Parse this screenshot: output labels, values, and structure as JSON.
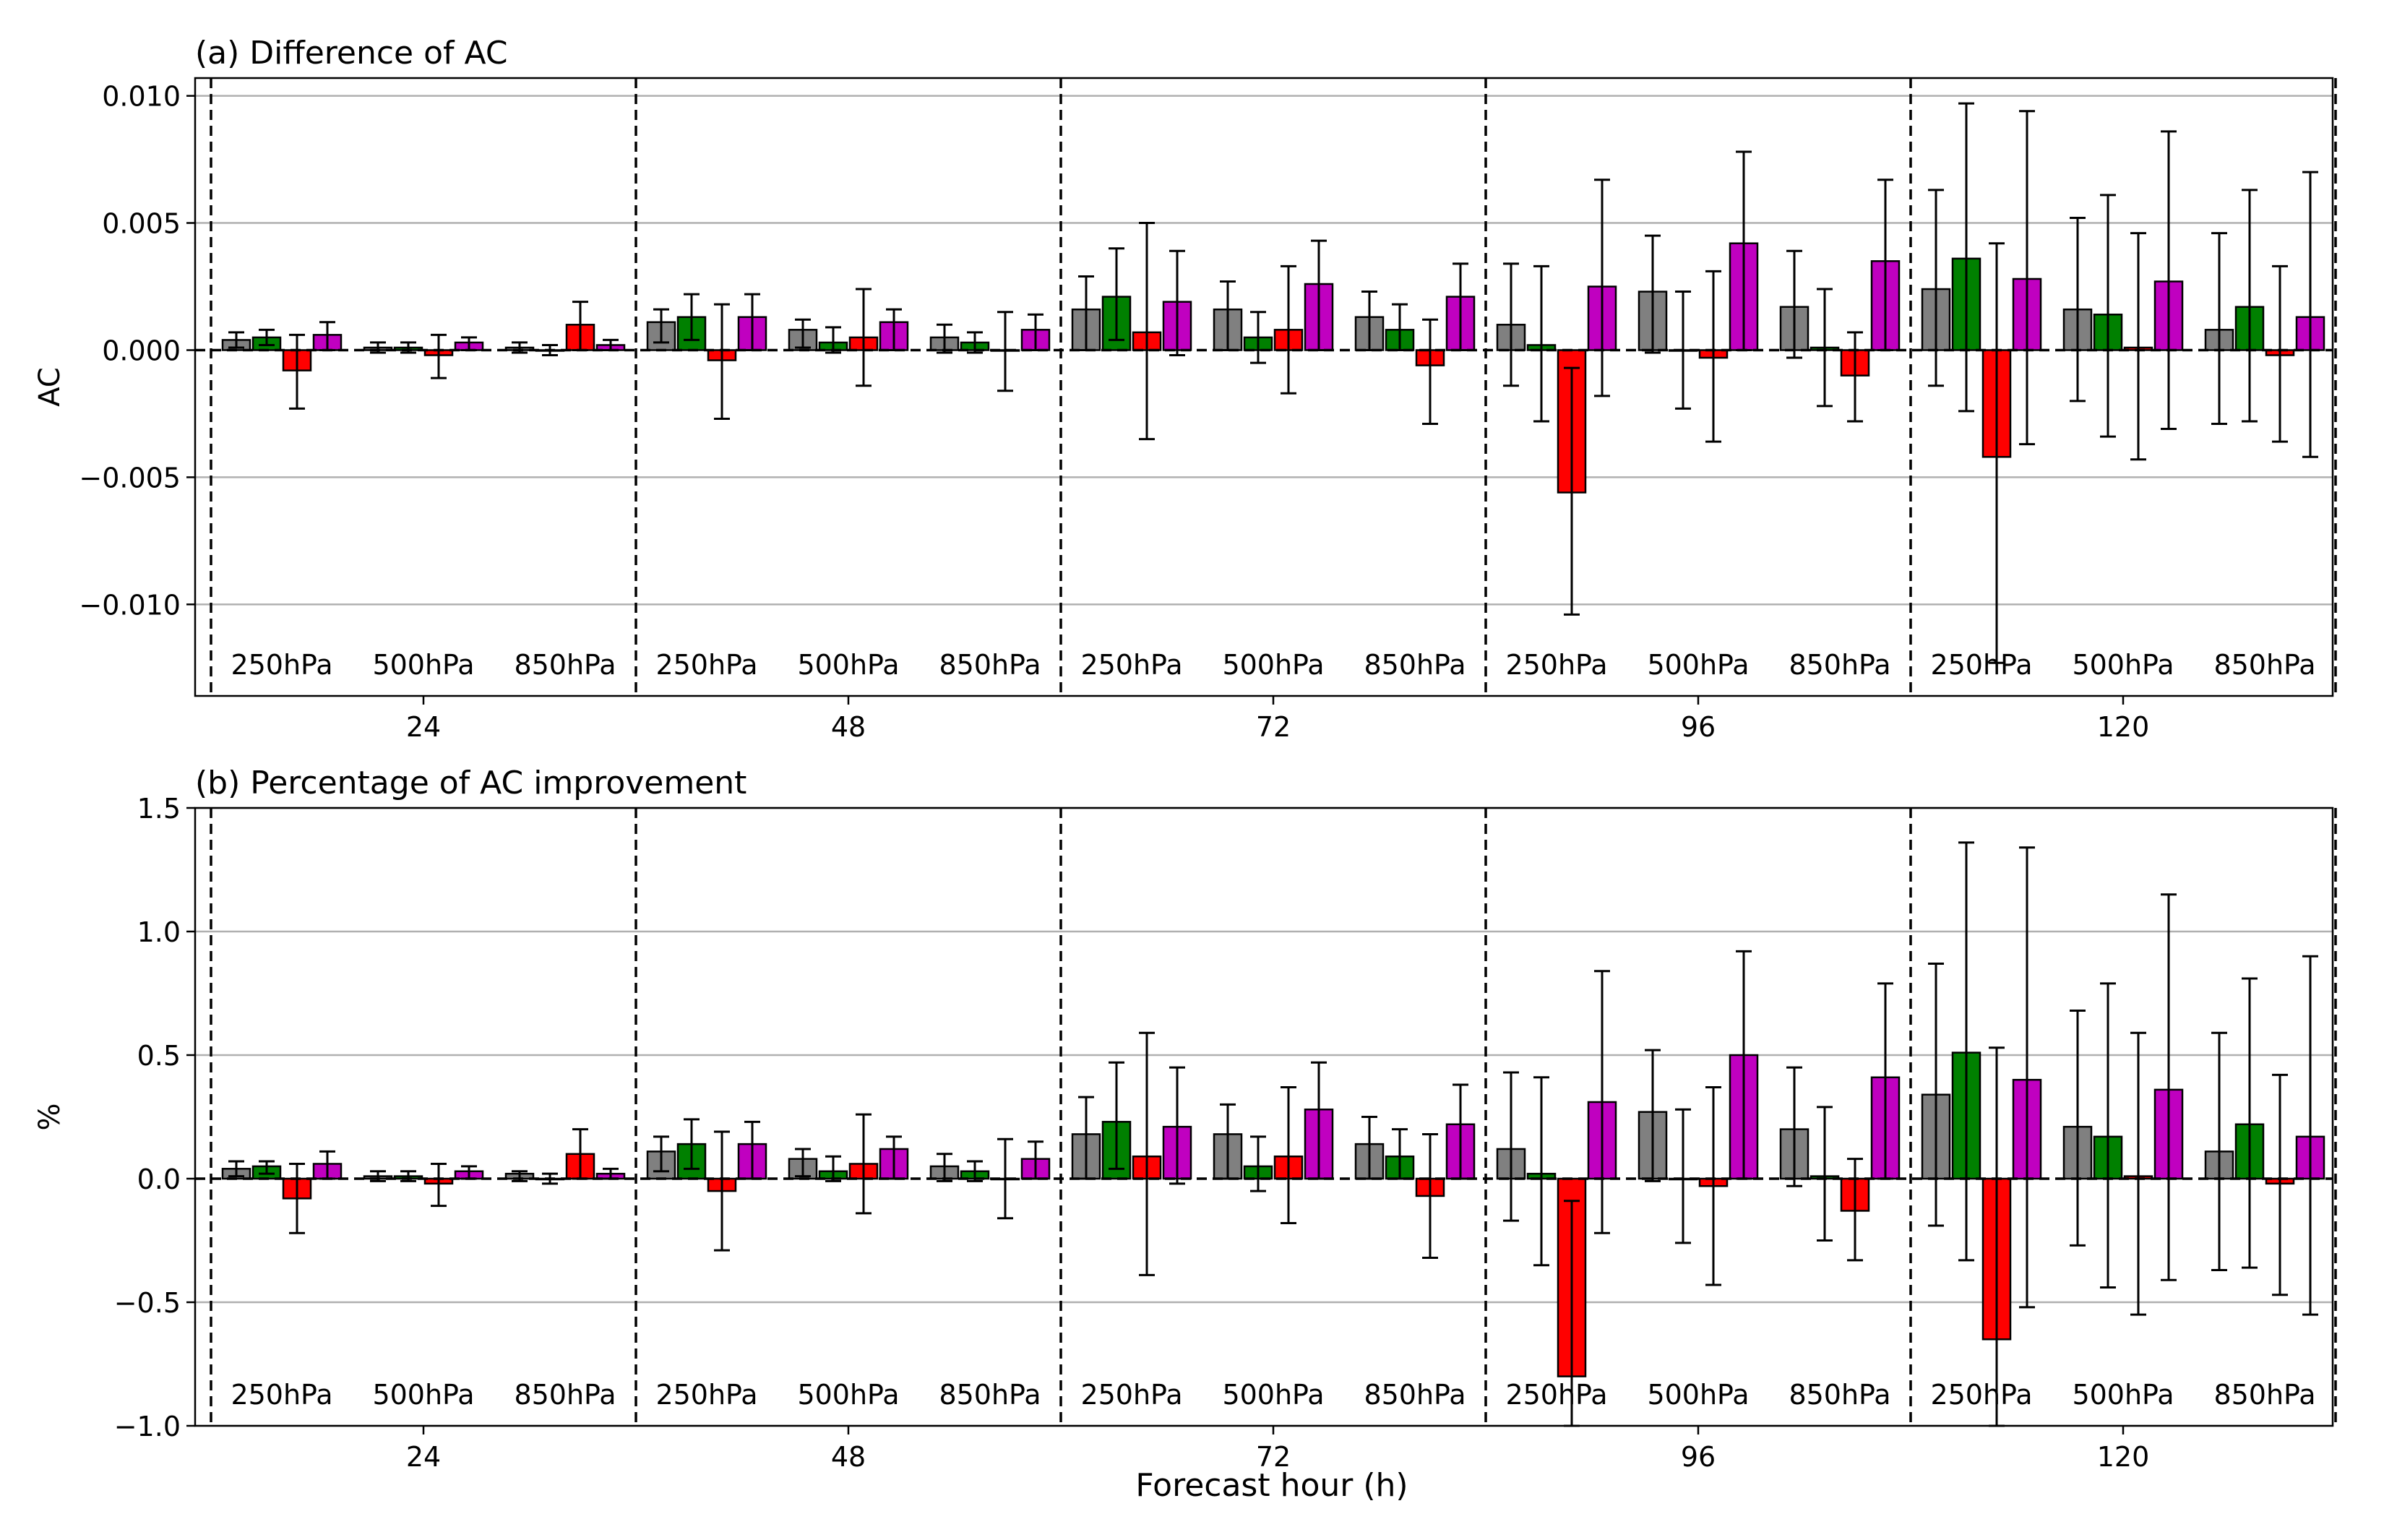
{
  "figure": {
    "xlabel": "Forecast hour (h)"
  },
  "style": {
    "series_colors": [
      "#808080",
      "#008000",
      "#ff0000",
      "#c000c0"
    ],
    "grid_color": "#b0b0b0"
  },
  "chart_data": [
    {
      "type": "bar",
      "title": "(a) Difference of AC",
      "ylabel": "AC",
      "ylim": [
        -0.0136,
        0.0107
      ],
      "yticks": [
        -0.01,
        -0.005,
        0.0,
        0.005,
        0.01
      ],
      "ytick_labels": [
        "−0.010",
        "−0.005",
        "0.000",
        "0.005",
        "0.010"
      ],
      "grid": "horizontal",
      "groups": [
        "24",
        "48",
        "72",
        "96",
        "120"
      ],
      "levels": [
        "250hPa",
        "500hPa",
        "850hPa"
      ],
      "series_count": 4,
      "values": [
        [
          [
            0.0004,
            0.0005,
            -0.0008,
            0.0006
          ],
          [
            0.0001,
            0.0001,
            -0.0002,
            0.0003
          ],
          [
            0.0001,
            0.0,
            0.001,
            0.0002
          ]
        ],
        [
          [
            0.0011,
            0.0013,
            -0.0004,
            0.0013
          ],
          [
            0.0008,
            0.0003,
            0.0005,
            0.0011
          ],
          [
            0.0005,
            0.0003,
            0.0,
            0.0008
          ]
        ],
        [
          [
            0.0016,
            0.0021,
            0.0007,
            0.0019
          ],
          [
            0.0016,
            0.0005,
            0.0008,
            0.0026
          ],
          [
            0.0013,
            0.0008,
            -0.0006,
            0.0021
          ]
        ],
        [
          [
            0.001,
            0.0002,
            -0.0056,
            0.0025
          ],
          [
            0.0023,
            0.0,
            -0.0003,
            0.0042
          ],
          [
            0.0017,
            0.0001,
            -0.001,
            0.0035
          ]
        ],
        [
          [
            0.0024,
            0.0036,
            -0.0042,
            0.0028
          ],
          [
            0.0016,
            0.0014,
            0.0001,
            0.0027
          ],
          [
            0.0008,
            0.0017,
            -0.0002,
            0.0013
          ]
        ]
      ],
      "error_low": [
        [
          [
            0.0001,
            0.0002,
            -0.0023,
            0.0
          ],
          [
            -0.0001,
            -0.0001,
            -0.0011,
            0.0
          ],
          [
            -0.0001,
            -0.0002,
            0.0,
            0.0
          ]
        ],
        [
          [
            0.0003,
            0.0004,
            -0.0027,
            0.0
          ],
          [
            0.0001,
            -0.0001,
            -0.0014,
            0.0
          ],
          [
            -0.0001,
            -0.0001,
            -0.0016,
            0.0
          ]
        ],
        [
          [
            0.0,
            0.0004,
            -0.0035,
            -0.0002
          ],
          [
            0.0,
            -0.0005,
            -0.0017,
            0.0
          ],
          [
            0.0,
            0.0,
            -0.0029,
            0.0
          ]
        ],
        [
          [
            -0.0014,
            -0.0028,
            -0.0104,
            -0.0018
          ],
          [
            -0.0001,
            -0.0023,
            -0.0036,
            0.0
          ],
          [
            -0.0003,
            -0.0022,
            -0.0028,
            0.0
          ]
        ],
        [
          [
            -0.0014,
            -0.0024,
            -0.0123,
            -0.0037
          ],
          [
            -0.002,
            -0.0034,
            -0.0043,
            -0.0031
          ],
          [
            -0.0029,
            -0.0028,
            -0.0036,
            -0.0042
          ]
        ]
      ],
      "error_high": [
        [
          [
            0.0007,
            0.0008,
            0.0006,
            0.0011
          ],
          [
            0.0003,
            0.0003,
            0.0006,
            0.0005
          ],
          [
            0.0003,
            0.0002,
            0.0019,
            0.0004
          ]
        ],
        [
          [
            0.0016,
            0.0022,
            0.0018,
            0.0022
          ],
          [
            0.0012,
            0.0009,
            0.0024,
            0.0016
          ],
          [
            0.001,
            0.0007,
            0.0015,
            0.0014
          ]
        ],
        [
          [
            0.0029,
            0.004,
            0.005,
            0.0039
          ],
          [
            0.0027,
            0.0015,
            0.0033,
            0.0043
          ],
          [
            0.0023,
            0.0018,
            0.0012,
            0.0034
          ]
        ],
        [
          [
            0.0034,
            0.0033,
            -0.0007,
            0.0067
          ],
          [
            0.0045,
            0.0023,
            0.0031,
            0.0078
          ],
          [
            0.0039,
            0.0024,
            0.0007,
            0.0067
          ]
        ],
        [
          [
            0.0063,
            0.0097,
            0.0042,
            0.0094
          ],
          [
            0.0052,
            0.0061,
            0.0046,
            0.0086
          ],
          [
            0.0046,
            0.0063,
            0.0033,
            0.007
          ]
        ]
      ]
    },
    {
      "type": "bar",
      "title": "(b) Percentage of AC improvement",
      "ylabel": "%",
      "ylim": [
        -1.0,
        1.5
      ],
      "yticks": [
        -1.0,
        -0.5,
        0.0,
        0.5,
        1.0,
        1.5
      ],
      "ytick_labels": [
        "−1.0",
        "−0.5",
        "0.0",
        "0.5",
        "1.0",
        "1.5"
      ],
      "grid": "horizontal",
      "groups": [
        "24",
        "48",
        "72",
        "96",
        "120"
      ],
      "levels": [
        "250hPa",
        "500hPa",
        "850hPa"
      ],
      "series_count": 4,
      "values": [
        [
          [
            0.04,
            0.05,
            -0.08,
            0.06
          ],
          [
            0.01,
            0.01,
            -0.02,
            0.03
          ],
          [
            0.02,
            0.0,
            0.1,
            0.02
          ]
        ],
        [
          [
            0.11,
            0.14,
            -0.05,
            0.14
          ],
          [
            0.08,
            0.03,
            0.06,
            0.12
          ],
          [
            0.05,
            0.03,
            0.0,
            0.08
          ]
        ],
        [
          [
            0.18,
            0.23,
            0.09,
            0.21
          ],
          [
            0.18,
            0.05,
            0.09,
            0.28
          ],
          [
            0.14,
            0.09,
            -0.07,
            0.22
          ]
        ],
        [
          [
            0.12,
            0.02,
            -0.8,
            0.31
          ],
          [
            0.27,
            0.0,
            -0.03,
            0.5
          ],
          [
            0.2,
            0.01,
            -0.13,
            0.41
          ]
        ],
        [
          [
            0.34,
            0.51,
            -0.65,
            0.4
          ],
          [
            0.21,
            0.17,
            0.01,
            0.36
          ],
          [
            0.11,
            0.22,
            -0.02,
            0.17
          ]
        ]
      ],
      "error_low": [
        [
          [
            0.01,
            0.02,
            -0.22,
            0.0
          ],
          [
            -0.01,
            -0.01,
            -0.11,
            0.0
          ],
          [
            -0.01,
            -0.02,
            0.0,
            0.0
          ]
        ],
        [
          [
            0.03,
            0.04,
            -0.29,
            0.0
          ],
          [
            0.01,
            -0.01,
            -0.14,
            0.0
          ],
          [
            -0.01,
            -0.01,
            -0.16,
            0.0
          ]
        ],
        [
          [
            0.0,
            0.04,
            -0.39,
            -0.02
          ],
          [
            0.0,
            -0.05,
            -0.18,
            0.0
          ],
          [
            0.0,
            0.0,
            -0.32,
            0.0
          ]
        ],
        [
          [
            -0.17,
            -0.35,
            -1.0,
            -0.22
          ],
          [
            -0.01,
            -0.26,
            -0.43,
            0.0
          ],
          [
            -0.03,
            -0.25,
            -0.33,
            0.0
          ]
        ],
        [
          [
            -0.19,
            -0.33,
            -1.0,
            -0.52
          ],
          [
            -0.27,
            -0.44,
            -0.55,
            -0.41
          ],
          [
            -0.37,
            -0.36,
            -0.47,
            -0.55
          ]
        ]
      ],
      "error_high": [
        [
          [
            0.07,
            0.07,
            0.06,
            0.11
          ],
          [
            0.03,
            0.03,
            0.06,
            0.05
          ],
          [
            0.03,
            0.02,
            0.2,
            0.04
          ]
        ],
        [
          [
            0.17,
            0.24,
            0.19,
            0.23
          ],
          [
            0.12,
            0.09,
            0.26,
            0.17
          ],
          [
            0.1,
            0.07,
            0.16,
            0.15
          ]
        ],
        [
          [
            0.33,
            0.47,
            0.59,
            0.45
          ],
          [
            0.3,
            0.17,
            0.37,
            0.47
          ],
          [
            0.25,
            0.2,
            0.18,
            0.38
          ]
        ],
        [
          [
            0.43,
            0.41,
            -0.09,
            0.84
          ],
          [
            0.52,
            0.28,
            0.37,
            0.92
          ],
          [
            0.45,
            0.29,
            0.08,
            0.79
          ]
        ],
        [
          [
            0.87,
            1.36,
            0.53,
            1.34
          ],
          [
            0.68,
            0.79,
            0.59,
            1.15
          ],
          [
            0.59,
            0.81,
            0.42,
            0.9
          ]
        ]
      ]
    }
  ]
}
